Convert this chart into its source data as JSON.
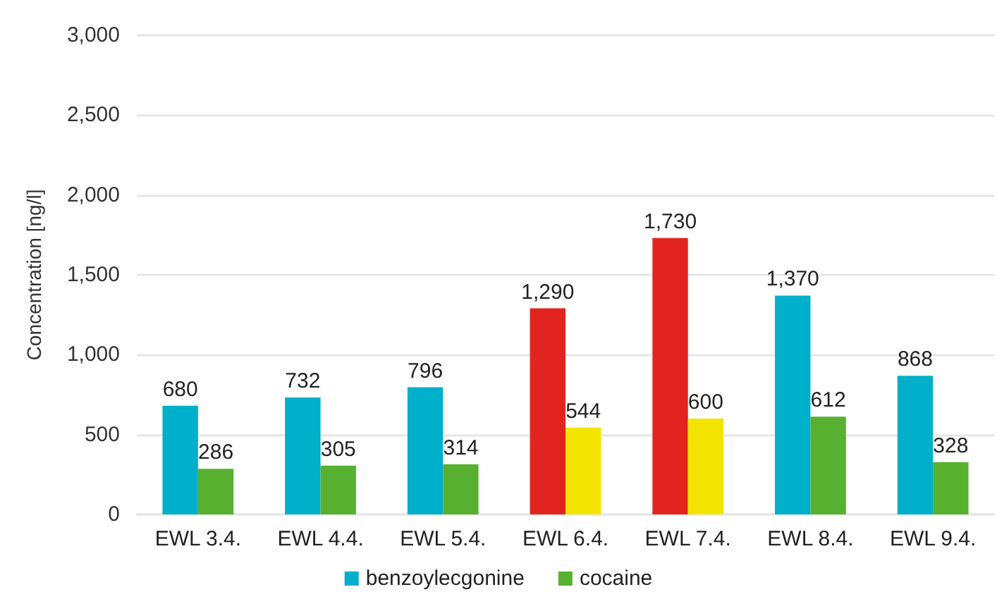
{
  "chart_data": {
    "type": "bar",
    "ylabel": "Concentration [ng/l]",
    "categories": [
      "EWL 3.4.",
      "EWL 4.4.",
      "EWL 5.4.",
      "EWL 6.4.",
      "EWL 7.4.",
      "EWL 8.4.",
      "EWL 9.4."
    ],
    "series": [
      {
        "name": "benzoylecgonine",
        "color": "#00afca",
        "colors": [
          "#00afca",
          "#00afca",
          "#00afca",
          "#e3231f",
          "#e3231f",
          "#00afca",
          "#00afca"
        ],
        "values": [
          680,
          732,
          796,
          1290,
          1730,
          1370,
          868
        ],
        "value_labels": [
          "680",
          "732",
          "796",
          "1,290",
          "1,730",
          "1,370",
          "868"
        ]
      },
      {
        "name": "cocaine",
        "color": "#58b030",
        "colors": [
          "#58b030",
          "#58b030",
          "#58b030",
          "#f2e400",
          "#f2e400",
          "#58b030",
          "#58b030"
        ],
        "values": [
          286,
          305,
          314,
          544,
          600,
          612,
          328
        ],
        "value_labels": [
          "286",
          "305",
          "314",
          "544",
          "600",
          "612",
          "328"
        ]
      }
    ],
    "ylim": [
      0,
      3000
    ],
    "yticks": [
      0,
      500,
      {
        "value": 1000,
        "label": "1,000"
      },
      {
        "value": 1500,
        "label": "1,500"
      },
      {
        "value": 2000,
        "label": "2,000"
      },
      {
        "value": 2500,
        "label": "2,500"
      },
      {
        "value": 3000,
        "label": "3,000"
      }
    ],
    "grid": "y",
    "legend": "bottom"
  }
}
